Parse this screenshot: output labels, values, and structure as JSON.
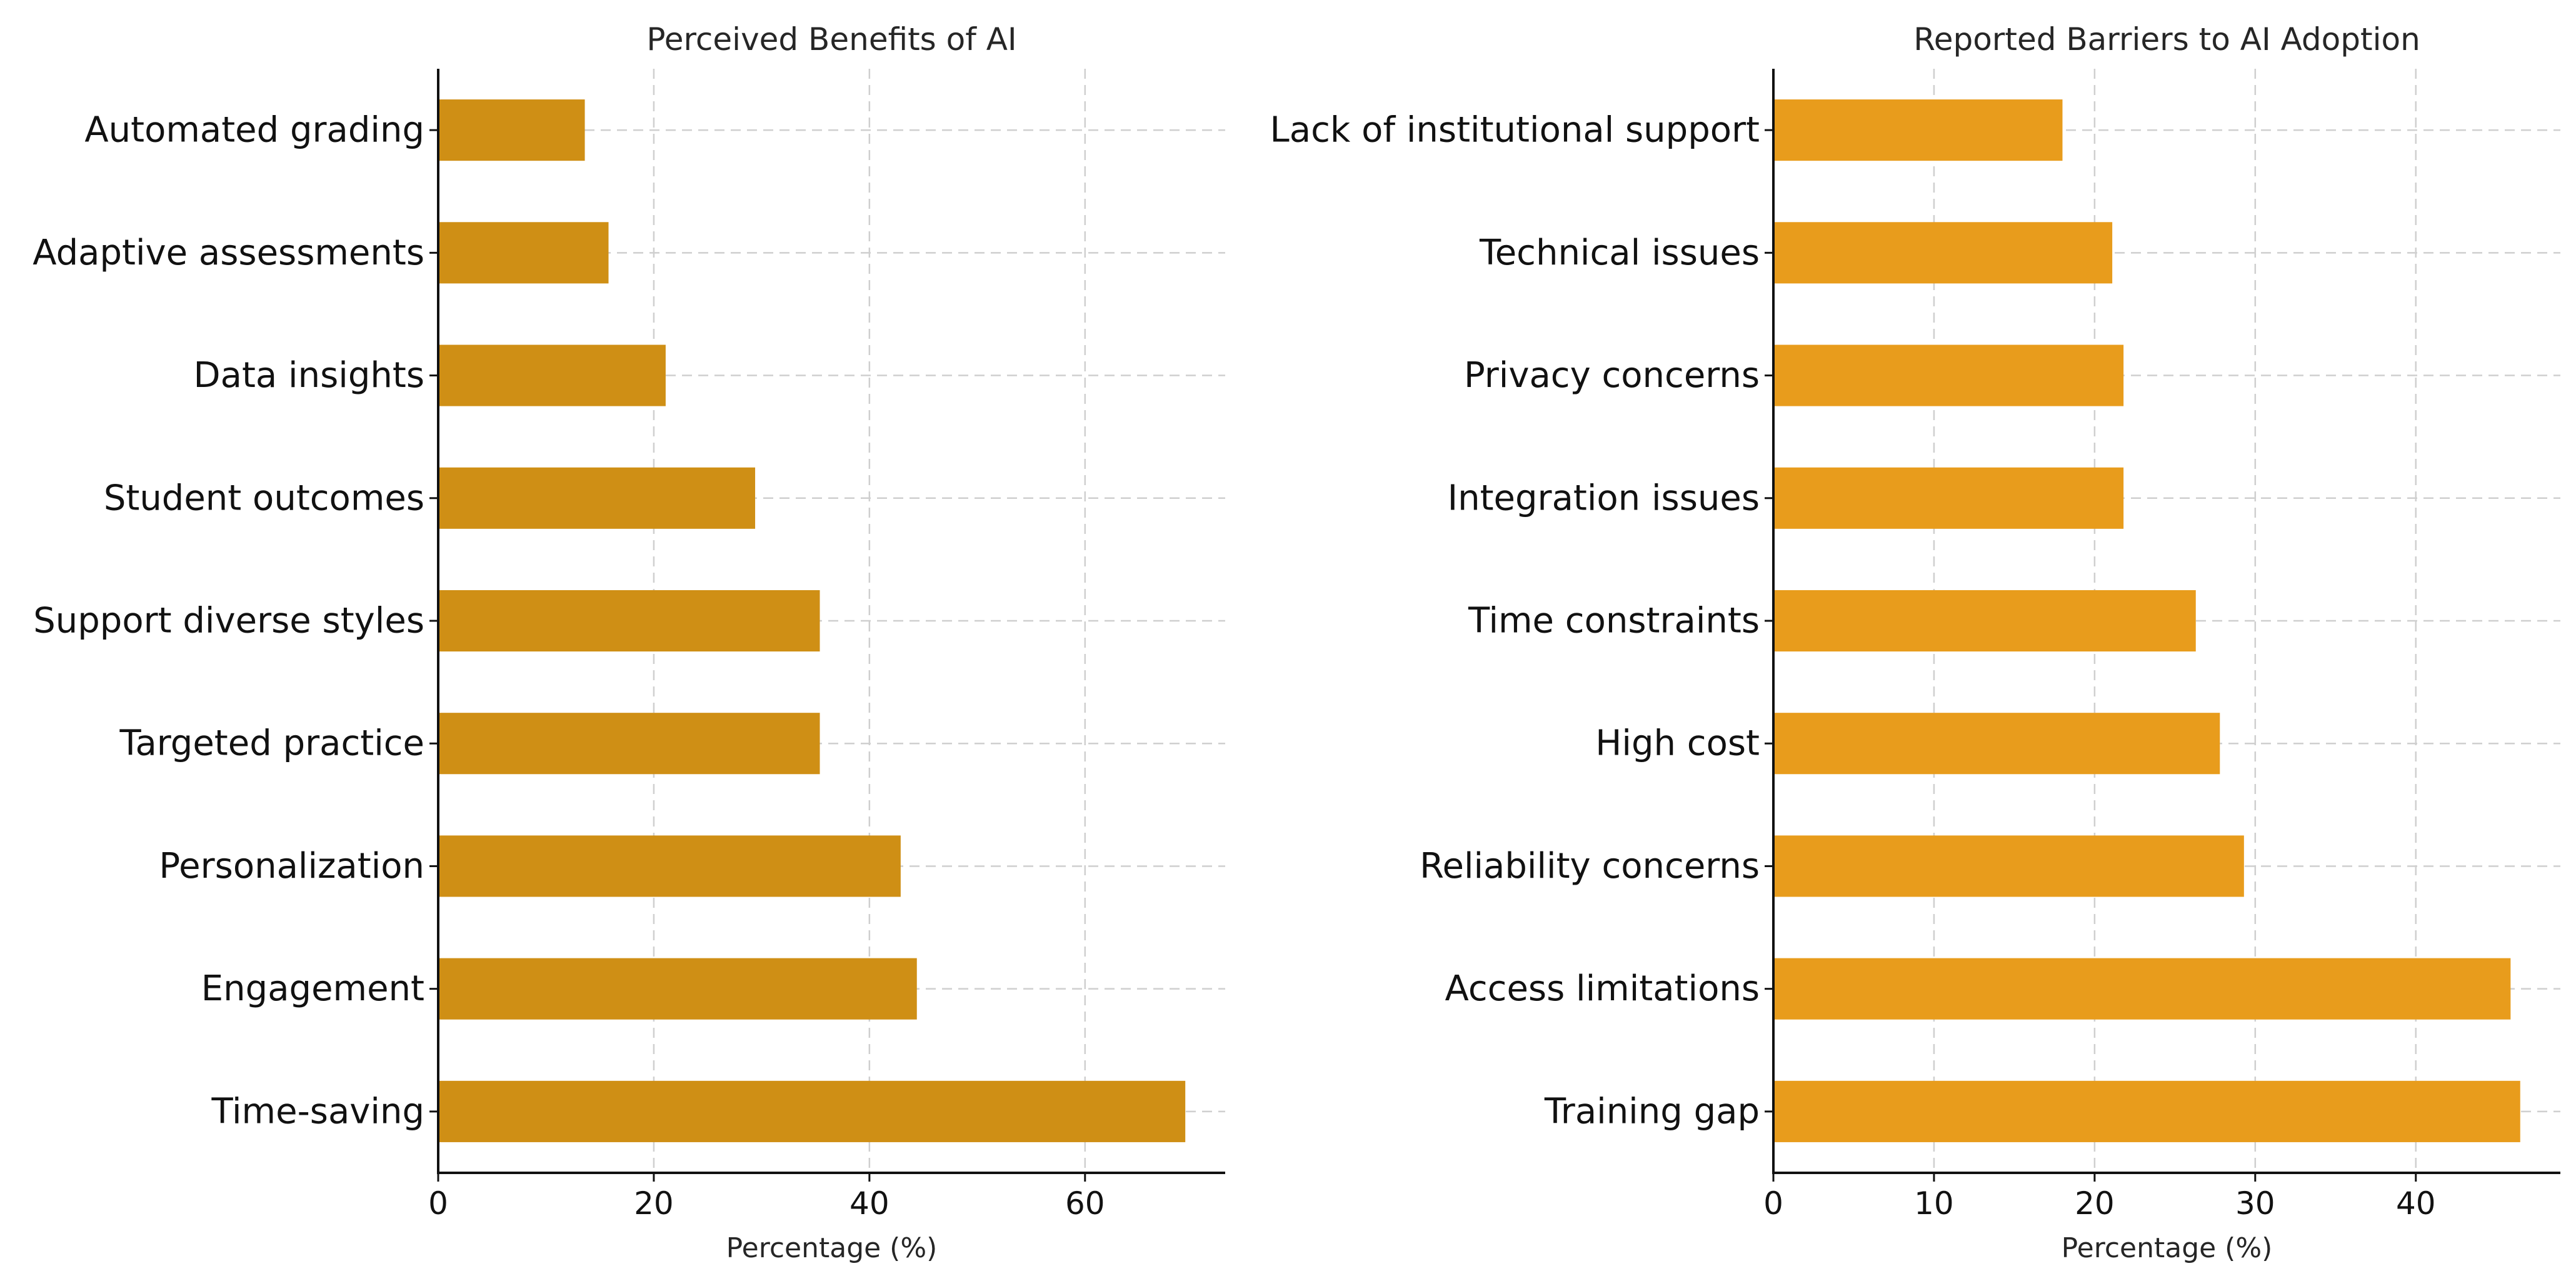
{
  "chart_data": [
    {
      "type": "bar",
      "orientation": "horizontal",
      "title": "Perceived Benefits of AI",
      "xlabel": "Percentage (%)",
      "ylabel": "",
      "xlim": [
        0,
        73
      ],
      "xticks": [
        0,
        20,
        40,
        60
      ],
      "grid": true,
      "color": "#CF8F15",
      "categories": [
        "Time-saving",
        "Engagement",
        "Personalization",
        "Targeted practice",
        "Support diverse styles",
        "Student outcomes",
        "Data insights",
        "Adaptive assessments",
        "Automated grading"
      ],
      "values": [
        69.3,
        44.4,
        42.9,
        35.4,
        35.4,
        29.4,
        21.1,
        15.8,
        13.6
      ]
    },
    {
      "type": "bar",
      "orientation": "horizontal",
      "title": "Reported Barriers to AI Adoption",
      "xlabel": "Percentage (%)",
      "ylabel": "",
      "xlim": [
        0,
        49
      ],
      "xticks": [
        0,
        10,
        20,
        30,
        40
      ],
      "grid": true,
      "color": "#E89C1C",
      "categories": [
        "Training gap",
        "Access limitations",
        "Reliability concerns",
        "High cost",
        "Time constraints",
        "Integration issues",
        "Privacy concerns",
        "Technical issues",
        "Lack of institutional support"
      ],
      "values": [
        46.5,
        45.9,
        29.3,
        27.8,
        26.3,
        21.8,
        21.8,
        21.1,
        18.0
      ]
    }
  ]
}
